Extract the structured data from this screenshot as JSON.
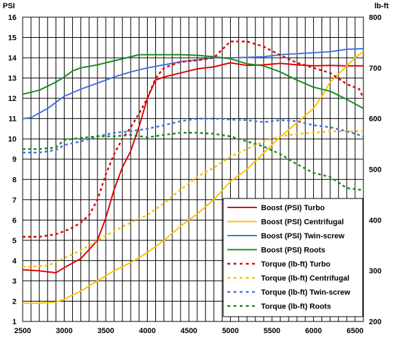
{
  "chart_data": {
    "type": "line",
    "title": "",
    "xlabel": "",
    "ylabel_left": "PSI",
    "ylabel_right": "lb-ft",
    "xlim": [
      2500,
      6600
    ],
    "ylim_left": [
      1,
      16
    ],
    "ylim_right": [
      200,
      800
    ],
    "x_ticks": [
      "2500",
      "3000",
      "3500",
      "4000",
      "4500",
      "5000",
      "5500",
      "6000",
      "6500"
    ],
    "y_left_ticks": [
      "1",
      "2",
      "3",
      "4",
      "5",
      "6",
      "7",
      "8",
      "9",
      "10",
      "11",
      "12",
      "13",
      "14",
      "15",
      "16"
    ],
    "y_right_ticks": [
      "200",
      "300",
      "400",
      "500",
      "600",
      "700",
      "800"
    ],
    "grid": true,
    "legend_position": "bottom-right",
    "series": [
      {
        "name": "Boost (PSI) Turbo",
        "axis": "left",
        "color": "#e00000",
        "dash": "solid",
        "x": [
          2500,
          2700,
          2900,
          3000,
          3200,
          3400,
          3500,
          3600,
          3700,
          3800,
          3900,
          4000,
          4100,
          4200,
          4400,
          4600,
          4800,
          5000,
          5200,
          5400,
          5600,
          5800,
          6000,
          6200,
          6400,
          6600
        ],
        "y": [
          3.55,
          3.5,
          3.4,
          3.65,
          4.1,
          5.0,
          6.1,
          7.5,
          8.6,
          9.4,
          10.6,
          12.0,
          12.9,
          13.05,
          13.25,
          13.45,
          13.55,
          13.75,
          13.62,
          13.65,
          13.72,
          13.65,
          13.6,
          13.62,
          13.6,
          13.6
        ]
      },
      {
        "name": "Boost (PSI) Centrifugal",
        "axis": "left",
        "color": "#ffc000",
        "dash": "solid",
        "x": [
          2500,
          2700,
          2900,
          3000,
          3200,
          3400,
          3600,
          3800,
          4000,
          4200,
          4400,
          4600,
          4800,
          5000,
          5200,
          5400,
          5600,
          5800,
          6000,
          6100,
          6200,
          6300,
          6400,
          6500,
          6600
        ],
        "y": [
          1.9,
          1.9,
          1.95,
          2.1,
          2.5,
          3.0,
          3.5,
          3.9,
          4.4,
          5.0,
          5.7,
          6.3,
          7.0,
          7.9,
          8.5,
          9.3,
          10.1,
          10.8,
          11.5,
          12.1,
          12.8,
          13.2,
          13.6,
          14.0,
          14.3
        ]
      },
      {
        "name": "Boost (PSI) Twin-screw",
        "axis": "left",
        "color": "#3f74e0",
        "dash": "solid",
        "x": [
          2500,
          2600,
          2800,
          3000,
          3200,
          3400,
          3600,
          3800,
          4000,
          4200,
          4400,
          4600,
          4800,
          5000,
          5200,
          5400,
          5600,
          5800,
          6000,
          6200,
          6400,
          6600
        ],
        "y": [
          11.0,
          11.05,
          11.5,
          12.1,
          12.45,
          12.75,
          13.05,
          13.3,
          13.5,
          13.65,
          13.8,
          13.9,
          14.0,
          14.0,
          14.02,
          14.05,
          14.15,
          14.2,
          14.25,
          14.3,
          14.42,
          14.45
        ]
      },
      {
        "name": "Boost (PSI) Roots",
        "axis": "left",
        "color": "#1a8a1a",
        "dash": "solid",
        "x": [
          2500,
          2700,
          2900,
          3000,
          3100,
          3200,
          3400,
          3600,
          3800,
          3900,
          4000,
          4200,
          4400,
          4600,
          4800,
          5000,
          5200,
          5400,
          5600,
          5800,
          6000,
          6200,
          6400,
          6600
        ],
        "y": [
          12.2,
          12.4,
          12.8,
          13.05,
          13.35,
          13.5,
          13.65,
          13.85,
          14.05,
          14.15,
          14.15,
          14.15,
          14.15,
          14.12,
          14.05,
          13.95,
          13.7,
          13.6,
          13.3,
          12.9,
          12.55,
          12.35,
          11.95,
          11.5
        ]
      },
      {
        "name": "Torque (lb-ft) Turbo",
        "axis": "right",
        "color": "#e00000",
        "dash": "dot",
        "x": [
          2500,
          2700,
          2900,
          3000,
          3100,
          3200,
          3300,
          3400,
          3500,
          3600,
          3700,
          3800,
          3900,
          4000,
          4100,
          4200,
          4400,
          4600,
          4800,
          5000,
          5200,
          5400,
          5600,
          5800,
          6000,
          6200,
          6400,
          6550,
          6600
        ],
        "y": [
          367,
          367,
          372,
          378,
          385,
          395,
          410,
          440,
          490,
          530,
          560,
          583,
          610,
          640,
          680,
          700,
          712,
          715,
          720,
          752,
          752,
          742,
          725,
          710,
          700,
          690,
          668,
          658,
          640
        ]
      },
      {
        "name": "Torque (lb-ft) Centrifugal",
        "axis": "right",
        "color": "#ffc000",
        "dash": "dot",
        "x": [
          2500,
          2600,
          2800,
          3000,
          3200,
          3400,
          3600,
          3800,
          4000,
          4200,
          4400,
          4600,
          4800,
          5000,
          5200,
          5400,
          5600,
          5800,
          6000,
          6200,
          6400,
          6600
        ],
        "y": [
          308,
          308,
          310,
          325,
          340,
          360,
          378,
          395,
          410,
          433,
          460,
          485,
          503,
          525,
          540,
          555,
          565,
          570,
          572,
          575,
          575,
          575
        ]
      },
      {
        "name": "Torque (lb-ft) Twin-screw",
        "axis": "right",
        "color": "#3f74e0",
        "dash": "dot",
        "x": [
          2500,
          2700,
          2900,
          3000,
          3200,
          3400,
          3600,
          3800,
          4000,
          4200,
          4400,
          4600,
          4800,
          5000,
          5200,
          5400,
          5600,
          5800,
          6000,
          6200,
          6400,
          6600
        ],
        "y": [
          533,
          533,
          538,
          548,
          555,
          565,
          572,
          575,
          580,
          587,
          595,
          600,
          600,
          598,
          597,
          593,
          597,
          595,
          587,
          583,
          575,
          565
        ]
      },
      {
        "name": "Torque (lb-ft) Roots",
        "axis": "right",
        "color": "#1a8a1a",
        "dash": "dot",
        "x": [
          2500,
          2700,
          2900,
          3000,
          3200,
          3400,
          3600,
          3800,
          4000,
          4200,
          4400,
          4600,
          4800,
          5000,
          5200,
          5400,
          5600,
          5800,
          6000,
          6200,
          6400,
          6600
        ],
        "y": [
          540,
          540,
          543,
          558,
          562,
          565,
          565,
          568,
          563,
          568,
          572,
          572,
          570,
          565,
          555,
          545,
          530,
          510,
          493,
          485,
          463,
          459
        ]
      }
    ]
  }
}
